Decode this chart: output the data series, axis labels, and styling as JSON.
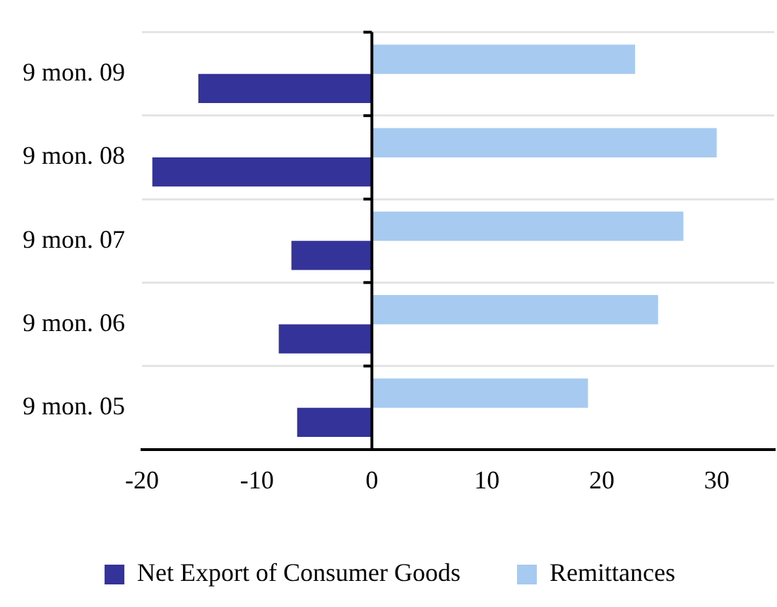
{
  "chart_data": {
    "type": "bar",
    "orientation": "horizontal",
    "categories": [
      "9 mon. 09",
      "9 mon. 08",
      "9 mon. 07",
      "9 mon. 06",
      "9 mon. 05"
    ],
    "series": [
      {
        "name": "Remittances",
        "color": "#a6caf0",
        "values": [
          22.9,
          30.0,
          27.1,
          24.9,
          18.8
        ]
      },
      {
        "name": "Net Export of Consumer Goods",
        "color": "#333399",
        "values": [
          -15.1,
          -19.1,
          -7.0,
          -8.1,
          -6.5
        ]
      }
    ],
    "xlim": [
      -20,
      35
    ],
    "xticks": [
      -20,
      -10,
      0,
      10,
      20,
      30
    ],
    "grid": "y",
    "legend": "bottom"
  }
}
